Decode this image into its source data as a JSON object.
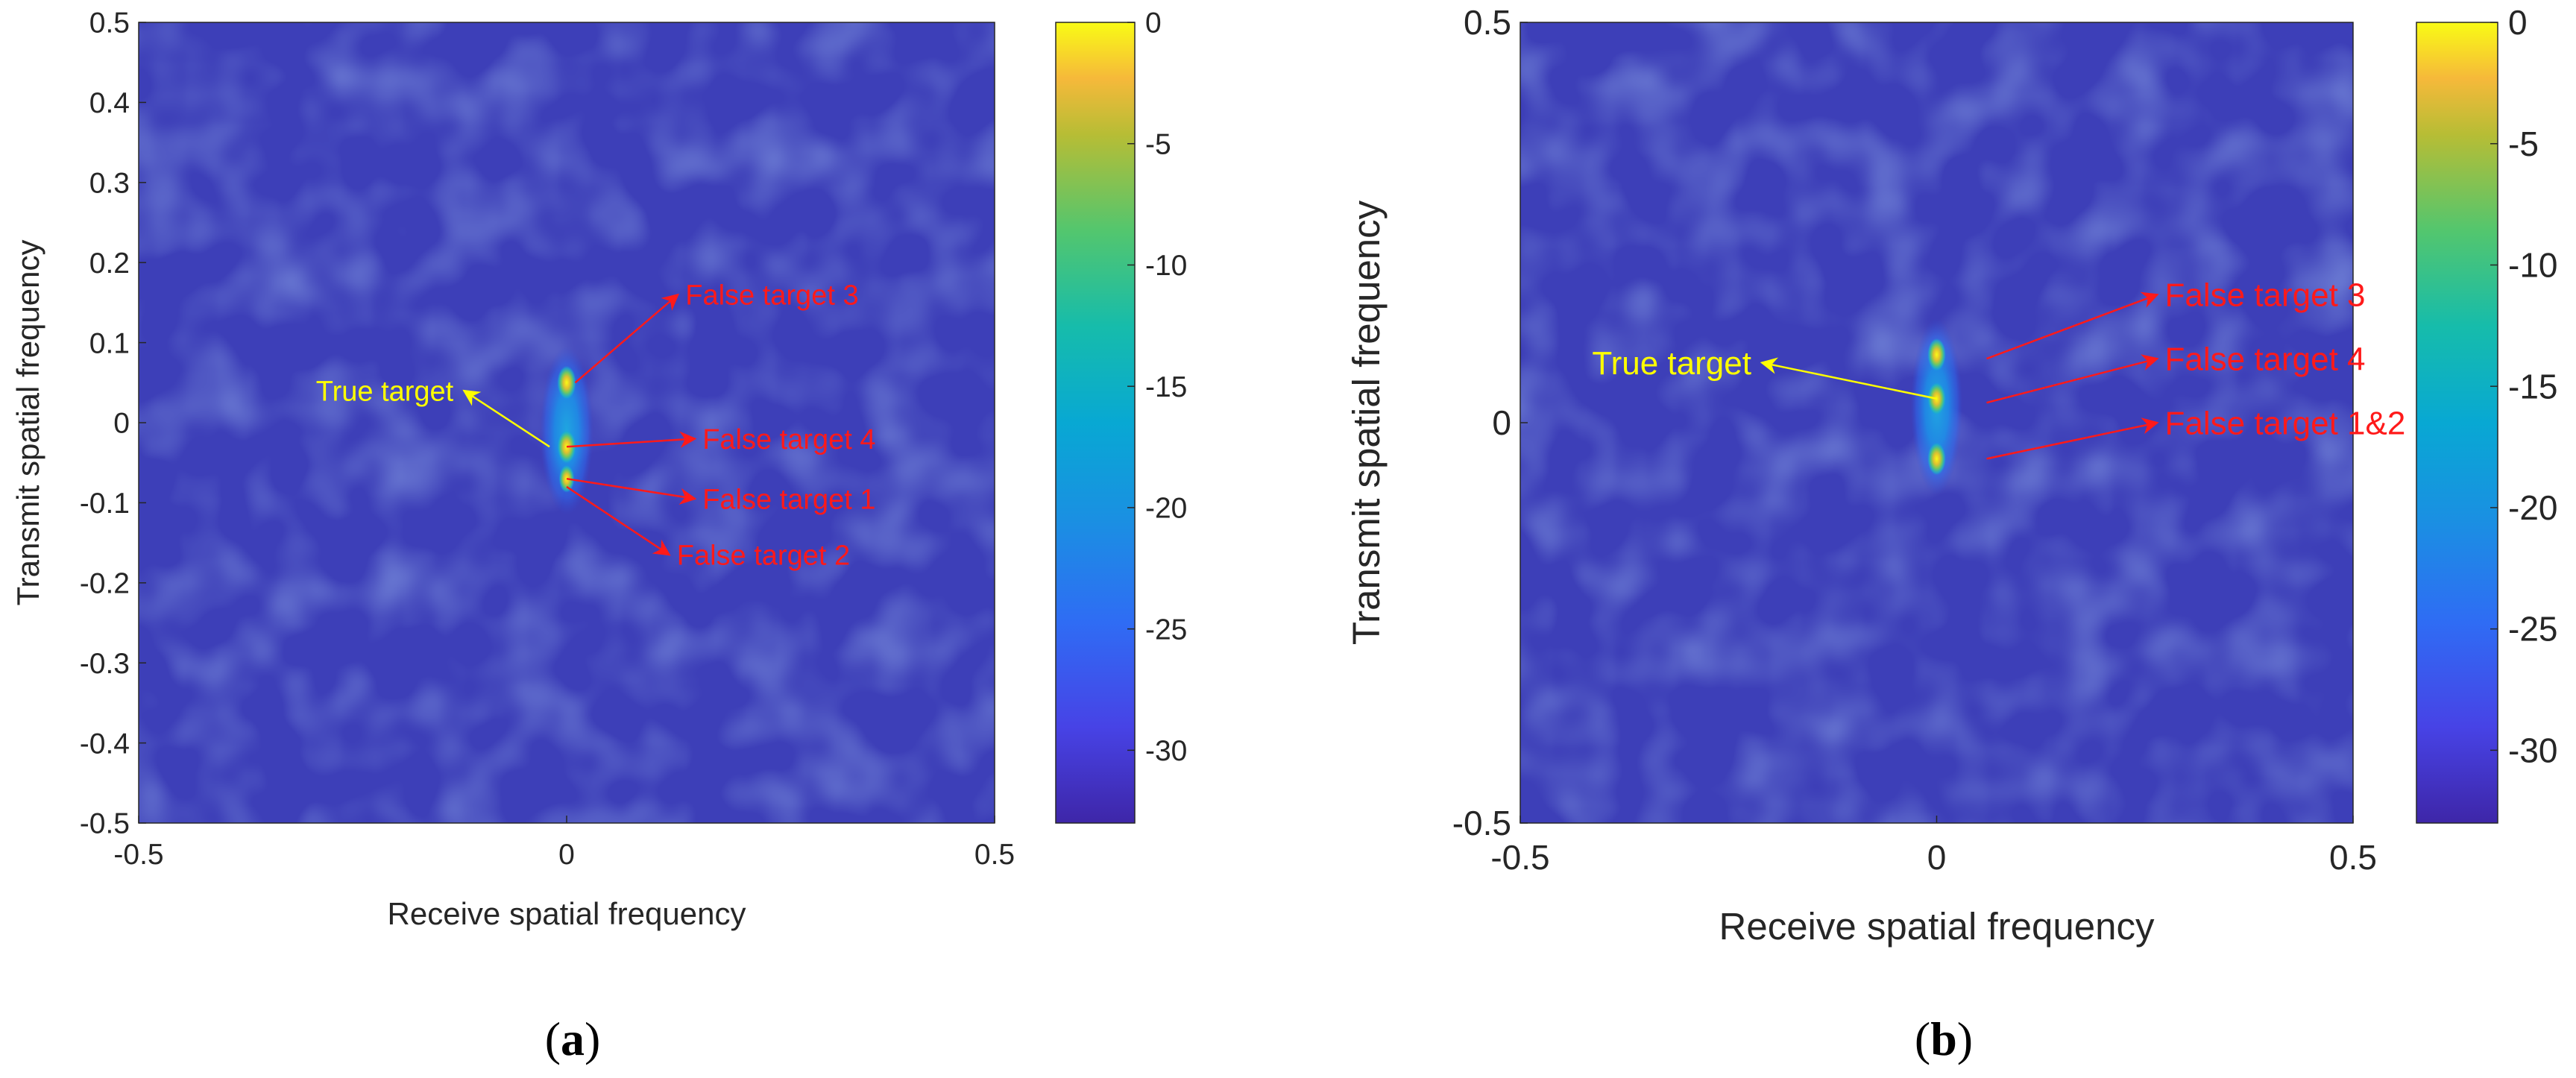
{
  "chart_data": [
    {
      "panel": "(a)",
      "type": "heatmap",
      "xlabel": "Receive spatial frequency",
      "ylabel": "Transmit spatial frequency",
      "xlim": [
        -0.5,
        0.5
      ],
      "ylim": [
        -0.5,
        0.5
      ],
      "xticks": [
        "-0.5",
        "0",
        "0.5"
      ],
      "yticks": [
        "-0.5",
        "-0.4",
        "-0.3",
        "-0.2",
        "-0.1",
        "0",
        "0.1",
        "0.2",
        "0.3",
        "0.4",
        "0.5"
      ],
      "colorbar": {
        "ticks": [
          "0",
          "-5",
          "-10",
          "-15",
          "-20",
          "-25",
          "-30"
        ],
        "range": [
          -33,
          0
        ]
      },
      "peaks": [
        {
          "x": 0.0,
          "y": 0.05,
          "level": 0
        },
        {
          "x": 0.0,
          "y": -0.03,
          "level": 0
        },
        {
          "x": 0.0,
          "y": -0.07,
          "level": -2
        }
      ],
      "annotations": [
        {
          "text": "True target",
          "color": "yellow",
          "point": [
            -0.12,
            0.04
          ],
          "from": [
            -0.02,
            -0.03
          ]
        },
        {
          "text": "False target 3",
          "color": "red",
          "point": [
            0.13,
            0.16
          ],
          "from": [
            0.01,
            0.05
          ]
        },
        {
          "text": "False target 4",
          "color": "red",
          "point": [
            0.15,
            -0.02
          ],
          "from": [
            0.0,
            -0.03
          ]
        },
        {
          "text": "False target 1",
          "color": "red",
          "point": [
            0.15,
            -0.095
          ],
          "from": [
            0.0,
            -0.07
          ]
        },
        {
          "text": "False target 2",
          "color": "red",
          "point": [
            0.12,
            -0.165
          ],
          "from": [
            0.0,
            -0.08
          ]
        }
      ]
    },
    {
      "panel": "(b)",
      "type": "heatmap",
      "xlabel": "Receive spatial frequency",
      "ylabel": "Transmit spatial frequency",
      "xlim": [
        -0.5,
        0.5
      ],
      "ylim": [
        -0.5,
        0.5
      ],
      "xticks": [
        "-0.5",
        "0",
        "0.5"
      ],
      "yticks": [
        "-0.5",
        "0",
        "0.5"
      ],
      "colorbar": {
        "ticks": [
          "0",
          "-5",
          "-10",
          "-15",
          "-20",
          "-25",
          "-30"
        ],
        "range": [
          -33,
          0
        ]
      },
      "peaks": [
        {
          "x": 0.0,
          "y": 0.085,
          "level": 0
        },
        {
          "x": 0.0,
          "y": 0.03,
          "level": 0
        },
        {
          "x": 0.0,
          "y": -0.045,
          "level": 0
        }
      ],
      "annotations": [
        {
          "text": "True target",
          "color": "yellow",
          "point": [
            -0.21,
            0.075
          ],
          "from": [
            0.0,
            0.03
          ]
        },
        {
          "text": "False target 3",
          "color": "red",
          "point": [
            0.265,
            0.16
          ],
          "from": [
            0.06,
            0.08
          ]
        },
        {
          "text": "False target 4",
          "color": "red",
          "point": [
            0.265,
            0.08
          ],
          "from": [
            0.06,
            0.025
          ]
        },
        {
          "text": "False target 1&2",
          "color": "red",
          "point": [
            0.265,
            0.0
          ],
          "from": [
            0.06,
            -0.045
          ]
        }
      ]
    }
  ]
}
